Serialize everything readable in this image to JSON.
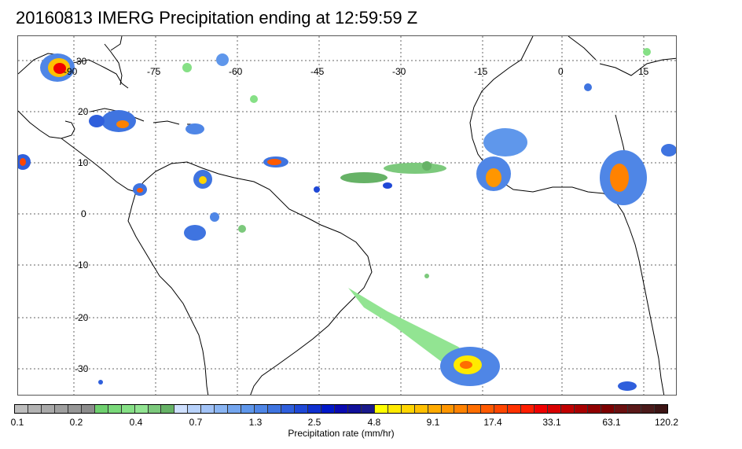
{
  "title": "20160813 IMERG Precipitation ending at 12:59:59 Z",
  "map": {
    "lon_labels": [
      "-90",
      "-75",
      "-60",
      "-45",
      "-30",
      "-15",
      "0",
      "15"
    ],
    "lat_labels": [
      "30",
      "20",
      "10",
      "0",
      "-10",
      "-20",
      "-30"
    ]
  },
  "colorbar": {
    "title": "Precipitation rate (mm/hr)",
    "tick_labels": [
      "0.1",
      "0.2",
      "0.4",
      "0.7",
      "1.3",
      "2.5",
      "4.8",
      "9.1",
      "17.4",
      "33.1",
      "63.1",
      "120.2"
    ],
    "colors": [
      "#bdbdbd",
      "#b3b3b3",
      "#a9a9a9",
      "#9f9f9f",
      "#969696",
      "#8c8c8c",
      "#6fd06f",
      "#7ad97a",
      "#86e086",
      "#92e492",
      "#7cc97c",
      "#66b266",
      "#cfe0ff",
      "#b8d2fb",
      "#a2c3f7",
      "#8ab5f3",
      "#74a6ef",
      "#5f97eb",
      "#4f86e6",
      "#3f74e0",
      "#2f5fdc",
      "#1f48d6",
      "#0f30cf",
      "#0018c8",
      "#0a0ab0",
      "#10109a",
      "#1a1a8a",
      "#ffff00",
      "#ffea00",
      "#ffd500",
      "#ffc000",
      "#ffab00",
      "#ff9600",
      "#ff8200",
      "#ff6e00",
      "#ff5a00",
      "#ff4600",
      "#ff3200",
      "#ff1e00",
      "#f00000",
      "#d80000",
      "#c00000",
      "#a80000",
      "#900000",
      "#7c0000",
      "#6a1010",
      "#5a1818",
      "#4a1a1a",
      "#3c1414"
    ]
  }
}
